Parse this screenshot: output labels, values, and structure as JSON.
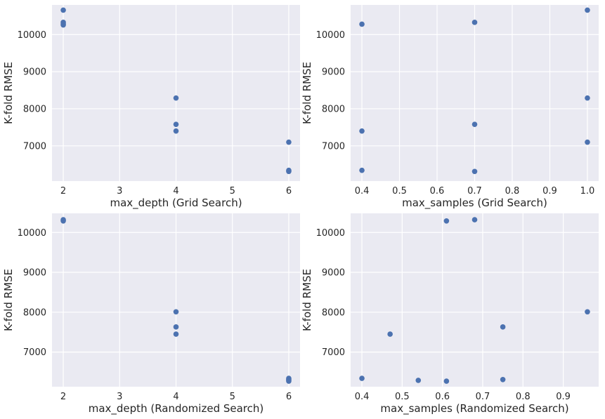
{
  "chart_data": [
    {
      "type": "scatter",
      "xlabel": "max_depth (Grid Search)",
      "ylabel": "K-fold RMSE",
      "xlim": [
        1.8,
        6.2
      ],
      "ylim": [
        6050,
        10800
      ],
      "xticks": [
        "2",
        "3",
        "4",
        "5",
        "6"
      ],
      "xtick_values": [
        2,
        3,
        4,
        5,
        6
      ],
      "yticks": [
        "7000",
        "8000",
        "9000",
        "10000"
      ],
      "ytick_values": [
        7000,
        8000,
        9000,
        10000
      ],
      "grid": true,
      "points": [
        {
          "x": 2,
          "y": 10660
        },
        {
          "x": 2,
          "y": 10330
        },
        {
          "x": 2,
          "y": 10290
        },
        {
          "x": 2,
          "y": 10260
        },
        {
          "x": 4,
          "y": 8290
        },
        {
          "x": 4,
          "y": 7580
        },
        {
          "x": 4,
          "y": 7400
        },
        {
          "x": 6,
          "y": 7100
        },
        {
          "x": 6,
          "y": 6340
        },
        {
          "x": 6,
          "y": 6310
        }
      ]
    },
    {
      "type": "scatter",
      "xlabel": "max_samples (Grid Search)",
      "ylabel": "K-fold RMSE",
      "xlim": [
        0.37,
        1.03
      ],
      "ylim": [
        6050,
        10800
      ],
      "xticks": [
        "0.4",
        "0.5",
        "0.6",
        "0.7",
        "0.8",
        "0.9",
        "1.0"
      ],
      "xtick_values": [
        0.4,
        0.5,
        0.6,
        0.7,
        0.8,
        0.9,
        1.0
      ],
      "yticks": [
        "7000",
        "8000",
        "9000",
        "10000"
      ],
      "ytick_values": [
        7000,
        8000,
        9000,
        10000
      ],
      "grid": true,
      "points": [
        {
          "x": 0.4,
          "y": 10280
        },
        {
          "x": 0.4,
          "y": 7400
        },
        {
          "x": 0.4,
          "y": 6340
        },
        {
          "x": 0.7,
          "y": 10330
        },
        {
          "x": 0.7,
          "y": 7580
        },
        {
          "x": 0.7,
          "y": 6310
        },
        {
          "x": 1.0,
          "y": 10660
        },
        {
          "x": 1.0,
          "y": 8290
        },
        {
          "x": 1.0,
          "y": 7100
        }
      ]
    },
    {
      "type": "scatter",
      "xlabel": "max_depth (Randomized Search)",
      "ylabel": "K-fold RMSE",
      "xlim": [
        1.8,
        6.2
      ],
      "ylim": [
        6130,
        10480
      ],
      "xticks": [
        "2",
        "3",
        "4",
        "5",
        "6"
      ],
      "xtick_values": [
        2,
        3,
        4,
        5,
        6
      ],
      "yticks": [
        "7000",
        "8000",
        "9000",
        "10000"
      ],
      "ytick_values": [
        7000,
        8000,
        9000,
        10000
      ],
      "grid": true,
      "points": [
        {
          "x": 2,
          "y": 10320
        },
        {
          "x": 2,
          "y": 10290
        },
        {
          "x": 4,
          "y": 8010
        },
        {
          "x": 4,
          "y": 7630
        },
        {
          "x": 4,
          "y": 7450
        },
        {
          "x": 6,
          "y": 6340
        },
        {
          "x": 6,
          "y": 6310
        },
        {
          "x": 6,
          "y": 6290
        },
        {
          "x": 6,
          "y": 6270
        }
      ]
    },
    {
      "type": "scatter",
      "xlabel": "max_samples (Randomized Search)",
      "ylabel": "K-fold RMSE",
      "xlim": [
        0.372,
        0.988
      ],
      "ylim": [
        6130,
        10480
      ],
      "xticks": [
        "0.4",
        "0.5",
        "0.6",
        "0.7",
        "0.8",
        "0.9"
      ],
      "xtick_values": [
        0.4,
        0.5,
        0.6,
        0.7,
        0.8,
        0.9
      ],
      "yticks": [
        "7000",
        "8000",
        "9000",
        "10000"
      ],
      "ytick_values": [
        7000,
        8000,
        9000,
        10000
      ],
      "grid": true,
      "points": [
        {
          "x": 0.4,
          "y": 6340
        },
        {
          "x": 0.47,
          "y": 7450
        },
        {
          "x": 0.54,
          "y": 6290
        },
        {
          "x": 0.61,
          "y": 10290
        },
        {
          "x": 0.61,
          "y": 6270
        },
        {
          "x": 0.68,
          "y": 10320
        },
        {
          "x": 0.75,
          "y": 7630
        },
        {
          "x": 0.75,
          "y": 6310
        },
        {
          "x": 0.96,
          "y": 8010
        }
      ]
    }
  ],
  "colors": {
    "background": "#eaeaf2",
    "grid": "#ffffff",
    "point": "#4c72b0",
    "text": "#262626"
  }
}
